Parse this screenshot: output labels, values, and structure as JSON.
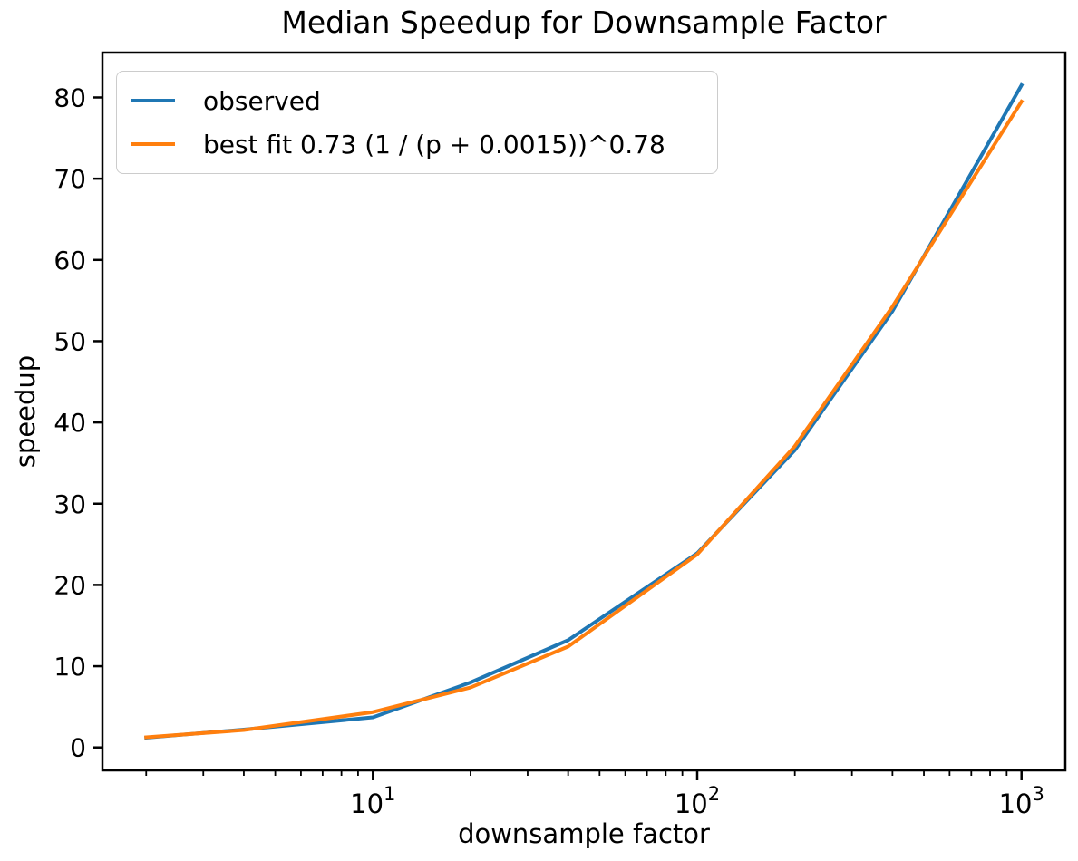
{
  "chart_data": {
    "type": "line",
    "title": "Median Speedup for Downsample Factor",
    "xlabel": "downsample factor",
    "ylabel": "speedup",
    "xscale": "log",
    "grid": false,
    "legend_position": "upper left",
    "x": [
      2,
      4,
      10,
      20,
      40,
      100,
      200,
      400,
      1000
    ],
    "series": [
      {
        "name": "observed",
        "color": "#1f77b4",
        "values": [
          1.2,
          2.2,
          3.7,
          8.0,
          13.2,
          23.9,
          36.6,
          53.7,
          81.5
        ]
      },
      {
        "name": "best fit 0.73 (1 / (p + 0.0015))^0.78",
        "color": "#ff7f0e",
        "values": [
          1.25,
          2.14,
          4.35,
          7.38,
          12.42,
          23.76,
          37.08,
          54.25,
          79.5
        ]
      }
    ],
    "best_fit_params": {
      "coefficient": 0.73,
      "p_offset": 0.0015,
      "exponent": 0.78,
      "formula": "0.73 (1 / (p + 0.0015))^0.78"
    },
    "xlim": [
      1.466,
      1364.5
    ],
    "ylim": [
      -2.82,
      85.52
    ],
    "yticks": [
      0,
      10,
      20,
      30,
      40,
      50,
      60,
      70,
      80
    ],
    "xticks_major": [
      {
        "value": 10,
        "base": "10",
        "exponent": "1"
      },
      {
        "value": 100,
        "base": "10",
        "exponent": "2"
      },
      {
        "value": 1000,
        "base": "10",
        "exponent": "3"
      }
    ],
    "xticks_minor": [
      2,
      3,
      4,
      5,
      6,
      7,
      8,
      9,
      20,
      30,
      40,
      50,
      60,
      70,
      80,
      90,
      200,
      300,
      400,
      500,
      600,
      700,
      800,
      900
    ],
    "colors": {
      "axis": "#000000",
      "background": "#ffffff",
      "legend_border": "#cccccc"
    }
  }
}
